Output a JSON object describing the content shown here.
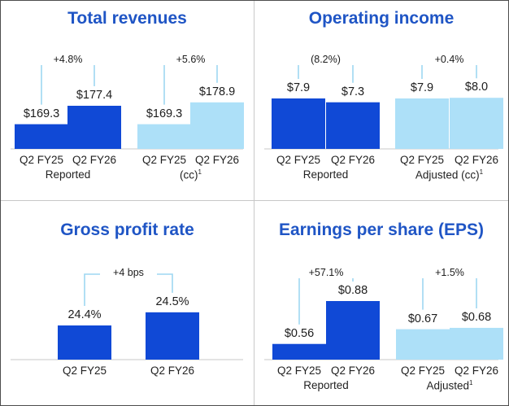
{
  "colors": {
    "title": "#1f55c5",
    "dark_bar": "#1049d6",
    "light_bar": "#ade0f8",
    "bracket": "#9ed7f2",
    "axis": "#c9c9c9",
    "divider": "#c8c8c8"
  },
  "chart_data": [
    {
      "type": "bar",
      "title": "Total revenues",
      "groups": [
        {
          "name": "Reported",
          "superscript": "",
          "categories": [
            "Q2 FY25",
            "Q2 FY26"
          ],
          "values": [
            169.3,
            177.4
          ],
          "labels": [
            "$169.3",
            "$177.4"
          ],
          "change": "+4.8%",
          "color": "dark"
        },
        {
          "name": "(cc)",
          "superscript": "1",
          "categories": [
            "Q2 FY25",
            "Q2 FY26"
          ],
          "values": [
            169.3,
            178.9
          ],
          "labels": [
            "$169.3",
            "$178.9"
          ],
          "change": "+5.6%",
          "color": "light"
        }
      ]
    },
    {
      "type": "bar",
      "title": "Operating income",
      "groups": [
        {
          "name": "Reported",
          "superscript": "",
          "categories": [
            "Q2 FY25",
            "Q2 FY26"
          ],
          "values": [
            7.9,
            7.3
          ],
          "labels": [
            "$7.9",
            "$7.3"
          ],
          "change": "(8.2%)",
          "color": "dark"
        },
        {
          "name": "Adjusted (cc)",
          "superscript": "1",
          "categories": [
            "Q2 FY25",
            "Q2 FY26"
          ],
          "values": [
            7.9,
            8.0
          ],
          "labels": [
            "$7.9",
            "$8.0"
          ],
          "change": "+0.4%",
          "color": "light"
        }
      ]
    },
    {
      "type": "bar",
      "title": "Gross profit rate",
      "groups": [
        {
          "name": "",
          "superscript": "",
          "categories": [
            "Q2 FY25",
            "Q2 FY26"
          ],
          "values": [
            24.4,
            24.5
          ],
          "labels": [
            "24.4%",
            "24.5%"
          ],
          "change": "+4 bps",
          "color": "dark"
        }
      ]
    },
    {
      "type": "bar",
      "title": "Earnings per share (EPS)",
      "groups": [
        {
          "name": "Reported",
          "superscript": "",
          "categories": [
            "Q2 FY25",
            "Q2 FY26"
          ],
          "values": [
            0.56,
            0.88
          ],
          "labels": [
            "$0.56",
            "$0.88"
          ],
          "change": "+57.1%",
          "color": "dark"
        },
        {
          "name": "Adjusted",
          "superscript": "1",
          "categories": [
            "Q2 FY25",
            "Q2 FY26"
          ],
          "values": [
            0.67,
            0.68
          ],
          "labels": [
            "$0.67",
            "$0.68"
          ],
          "change": "+1.5%",
          "color": "light"
        }
      ]
    }
  ]
}
